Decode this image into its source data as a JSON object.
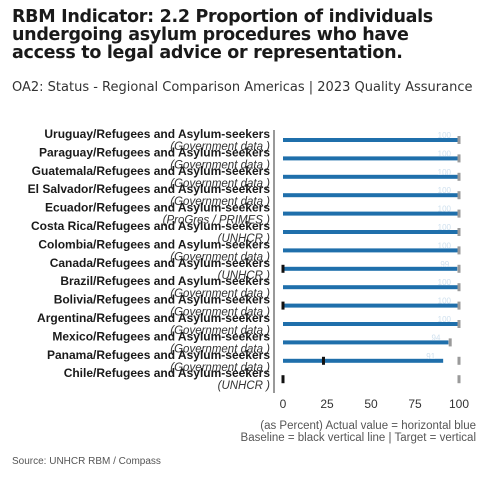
{
  "title": "RBM Indicator: 2.2 Proportion of individuals undergoing asylum procedures who have access to legal advice or representation.",
  "subtitle": "OA2: Status - Regional  Comparison Americas |  2023 Quality Assurance",
  "note_line1": "(as Percent) Actual value = horizontal blue",
  "note_line2": "Baseline = black vertical line | Target = vertical",
  "source": "Source:  UNHCR RBM  / Compass",
  "colors": {
    "actual": "#1f6fab",
    "baseline": "#111111",
    "target": "#9a9a9a",
    "axis": "#333333"
  },
  "chart_data": {
    "type": "bar",
    "orientation": "horizontal",
    "xlim": [
      0,
      100
    ],
    "x_ticks": [
      "0",
      "25",
      "50",
      "75",
      "100"
    ],
    "categories": [
      {
        "label": "Uruguay/Refugees and Asylum-seekers",
        "source": "(Government data )",
        "actual": 100,
        "baseline": null,
        "target": 100,
        "value_label": "100"
      },
      {
        "label": "Paraguay/Refugees and Asylum-seekers",
        "source": "(Government data )",
        "actual": 100,
        "baseline": null,
        "target": 100,
        "value_label": "100"
      },
      {
        "label": "Guatemala/Refugees and Asylum-seekers",
        "source": "(Government data )",
        "actual": 100,
        "baseline": null,
        "target": 100,
        "value_label": "100"
      },
      {
        "label": "El Salvador/Refugees and Asylum-seekers",
        "source": "(Government data )",
        "actual": 100,
        "baseline": null,
        "target": 100,
        "value_label": "100"
      },
      {
        "label": "Ecuador/Refugees and Asylum-seekers",
        "source": "(ProGres  / PRIMES )",
        "actual": 100,
        "baseline": null,
        "target": 100,
        "value_label": "100"
      },
      {
        "label": "Costa Rica/Refugees and Asylum-seekers",
        "source": "(UNHCR )",
        "actual": 100,
        "baseline": null,
        "target": 100,
        "value_label": "100"
      },
      {
        "label": "Colombia/Refugees and Asylum-seekers",
        "source": "(Government data )",
        "actual": 100,
        "baseline": null,
        "target": 100,
        "value_label": "100"
      },
      {
        "label": "Canada/Refugees and Asylum-seekers",
        "source": "(UNHCR )",
        "actual": 99,
        "baseline": 0,
        "target": 100,
        "value_label": "99"
      },
      {
        "label": "Brazil/Refugees and Asylum-seekers",
        "source": "(Government data )",
        "actual": 100,
        "baseline": null,
        "target": 100,
        "value_label": "100"
      },
      {
        "label": "Bolivia/Refugees and Asylum-seekers",
        "source": "(Government data )",
        "actual": 100,
        "baseline": 0,
        "target": 100,
        "value_label": "100"
      },
      {
        "label": "Argentina/Refugees and Asylum-seekers",
        "source": "(Government data )",
        "actual": 100,
        "baseline": null,
        "target": 100,
        "value_label": "100"
      },
      {
        "label": "Mexico/Refugees and Asylum-seekers",
        "source": "(Government data )",
        "actual": 94,
        "baseline": null,
        "target": 95,
        "value_label": "94"
      },
      {
        "label": "Panama/Refugees and Asylum-seekers",
        "source": "(Government data )",
        "actual": 91,
        "baseline": 23,
        "target": 100,
        "value_label": "91"
      },
      {
        "label": "Chile/Refugees and Asylum-seekers",
        "source": "(UNHCR )",
        "actual": null,
        "baseline": 0,
        "target": 100,
        "value_label": ""
      }
    ]
  }
}
